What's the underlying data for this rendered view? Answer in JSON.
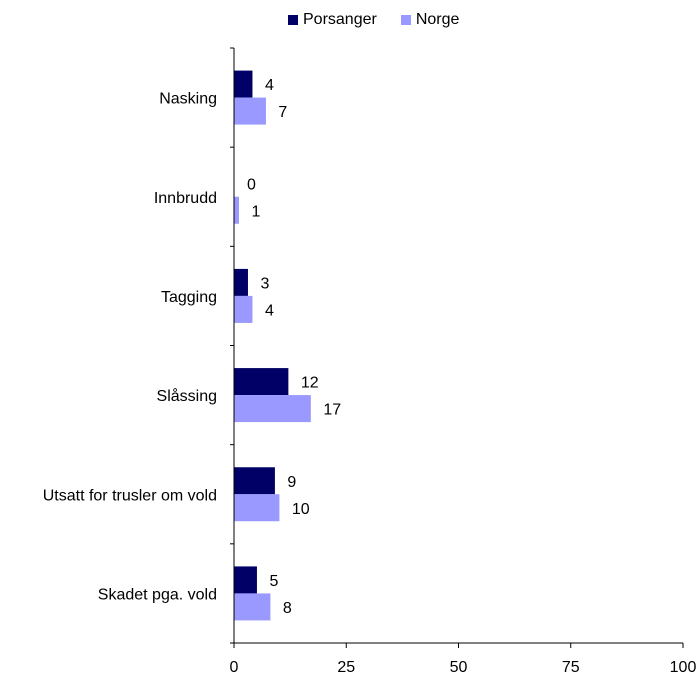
{
  "chart_data": {
    "type": "bar",
    "orientation": "horizontal",
    "categories": [
      "Nasking",
      "Innbrudd",
      "Tagging",
      "Slåssing",
      "Utsatt for trusler om vold",
      "Skadet pga. vold"
    ],
    "series": [
      {
        "name": "Porsanger",
        "color": "#000066",
        "values": [
          4,
          0,
          3,
          12,
          9,
          5
        ]
      },
      {
        "name": "Norge",
        "color": "#9999ff",
        "values": [
          7,
          1,
          4,
          17,
          10,
          8
        ]
      }
    ],
    "xlim": [
      0,
      100
    ],
    "xticks": [
      0,
      25,
      50,
      75,
      100
    ],
    "grid": false,
    "legend_position": "top"
  }
}
